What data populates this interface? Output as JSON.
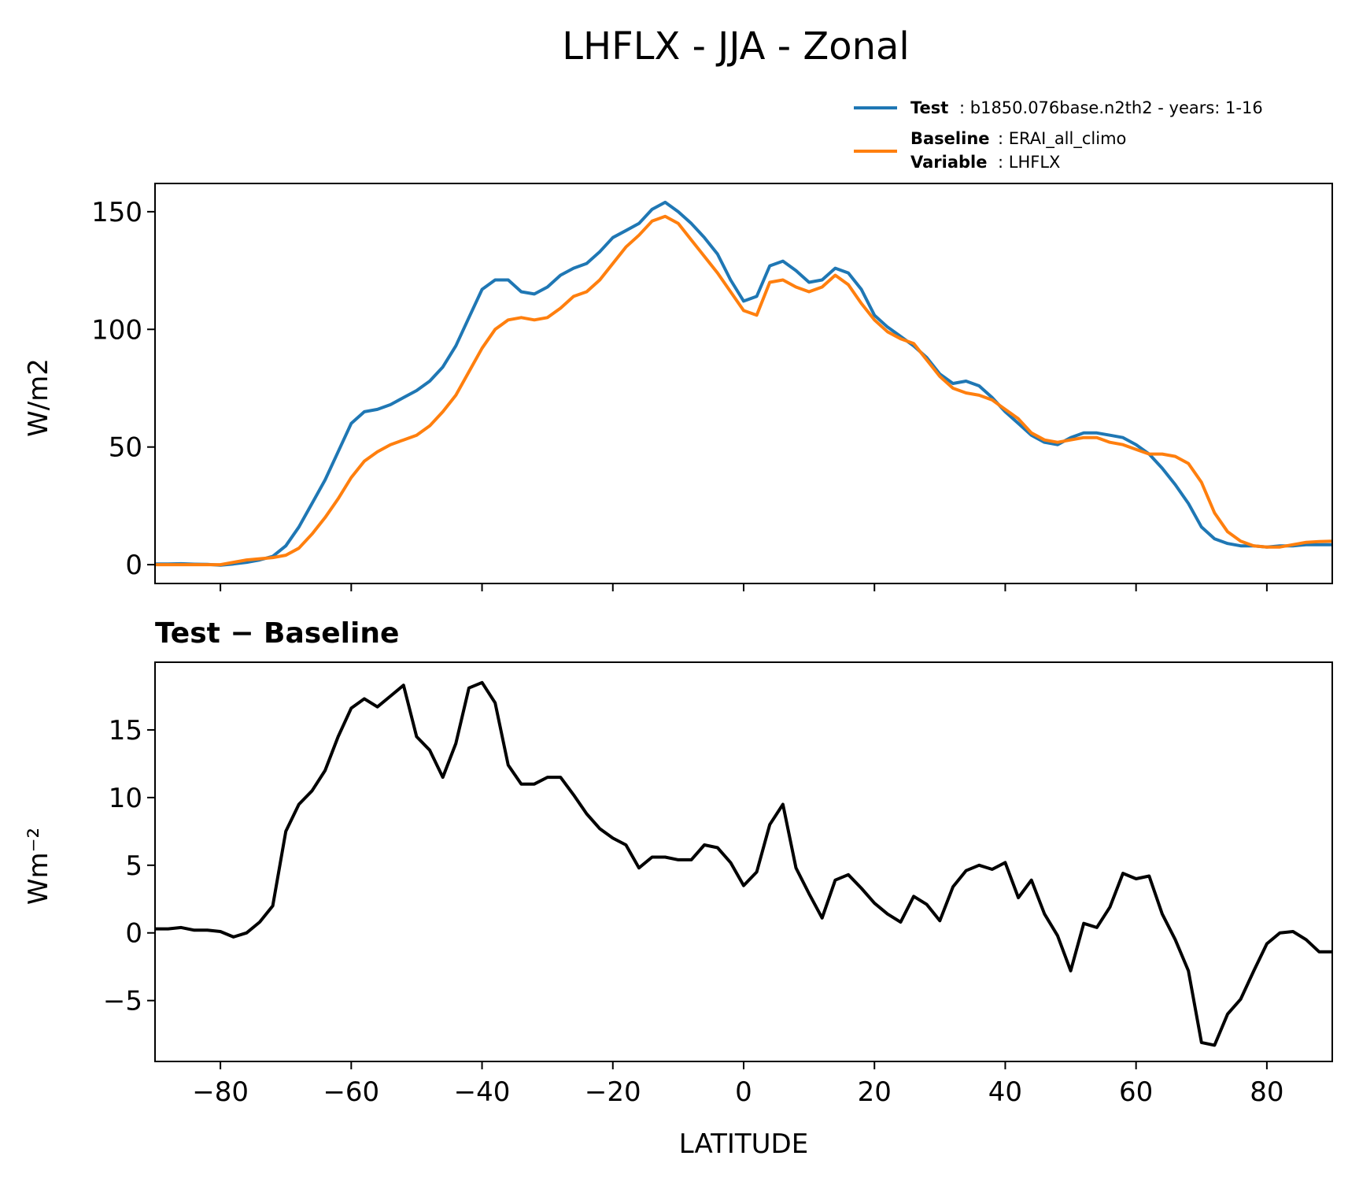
{
  "figure": {
    "title": "LHFLX - JJA - Zonal"
  },
  "legend": {
    "entries": [
      {
        "bold": "Test",
        "text": ": b1850.076base.n2th2 - years: 1-16",
        "color": "#1f77b4"
      },
      {
        "bold": "Baseline",
        "text": ": ERAI_all_climo",
        "color": "#ff7f0e"
      },
      {
        "bold": "Variable",
        "text": ": LHFLX",
        "color": "#ff7f0e"
      }
    ],
    "placement": "above top-right"
  },
  "chart_data": [
    {
      "type": "line",
      "ylabel": "W/m2",
      "xlabel": "",
      "xlim": [
        -90,
        90
      ],
      "ylim": [
        -8,
        162
      ],
      "yticks": [
        0,
        50,
        100,
        150
      ],
      "ytick_labels": [
        "0",
        "50",
        "100",
        "150"
      ],
      "xticks": [
        -80,
        -60,
        -40,
        -20,
        0,
        20,
        40,
        60,
        80
      ],
      "grid": false,
      "x": [
        -90,
        -88,
        -86,
        -84,
        -82,
        -80,
        -78,
        -76,
        -74,
        -72,
        -70,
        -68,
        -66,
        -64,
        -62,
        -60,
        -58,
        -56,
        -54,
        -52,
        -50,
        -48,
        -46,
        -44,
        -42,
        -40,
        -38,
        -36,
        -34,
        -32,
        -30,
        -28,
        -26,
        -24,
        -22,
        -20,
        -18,
        -16,
        -14,
        -12,
        -10,
        -8,
        -6,
        -4,
        -2,
        0,
        2,
        4,
        6,
        8,
        10,
        12,
        14,
        16,
        18,
        20,
        22,
        24,
        26,
        28,
        30,
        32,
        34,
        36,
        38,
        40,
        42,
        44,
        46,
        48,
        50,
        52,
        54,
        56,
        58,
        60,
        62,
        64,
        66,
        68,
        70,
        72,
        74,
        76,
        78,
        80,
        82,
        84,
        86,
        88,
        90
      ],
      "series": [
        {
          "name": "Test",
          "color": "#1f77b4",
          "values": [
            0.3,
            0.3,
            0.4,
            0.2,
            0.1,
            -0.2,
            0.3,
            1,
            2,
            3.5,
            8,
            16,
            26,
            36,
            48,
            60,
            65,
            66,
            68,
            71,
            74,
            78,
            84,
            93,
            105,
            117,
            121,
            121,
            116,
            115,
            118,
            123,
            126,
            128,
            133,
            139,
            142,
            145,
            151,
            154,
            150,
            145,
            139,
            132,
            121,
            112,
            114,
            127,
            129,
            125,
            120,
            121,
            126,
            124,
            117,
            106,
            101,
            97,
            93,
            88,
            81,
            77,
            78,
            76,
            71,
            65,
            60,
            55,
            52,
            51,
            54,
            56,
            56,
            55,
            54,
            51,
            47,
            41,
            34,
            26,
            16,
            11,
            9,
            8,
            8,
            7.5,
            8,
            8,
            8.5,
            8.5,
            8.5
          ]
        },
        {
          "name": "Baseline",
          "color": "#ff7f0e",
          "values": [
            0,
            0,
            0,
            0,
            0,
            0,
            1,
            2,
            2.5,
            3,
            4,
            7,
            13,
            20,
            28,
            37,
            44,
            48,
            51,
            53,
            55,
            59,
            65,
            72,
            82,
            92,
            100,
            104,
            105,
            104,
            105,
            109,
            114,
            116,
            121,
            128,
            135,
            140,
            146,
            148,
            145,
            138,
            131,
            124,
            116,
            108,
            106,
            120,
            121,
            118,
            116,
            118,
            123,
            119,
            111,
            104,
            99,
            96,
            94,
            87,
            80,
            75,
            73,
            72,
            70,
            66,
            62,
            56,
            53,
            52,
            53,
            54,
            54,
            52,
            51,
            49,
            47,
            47,
            46,
            43,
            35,
            22,
            14,
            10,
            8,
            7.5,
            7.5,
            8.5,
            9.5,
            9.8,
            10
          ]
        }
      ]
    },
    {
      "type": "line",
      "title": "Test − Baseline",
      "ylabel": "Wm⁻²",
      "xlabel": "LATITUDE",
      "xlim": [
        -90,
        90
      ],
      "ylim": [
        -9.5,
        20
      ],
      "yticks": [
        -5,
        0,
        5,
        10,
        15
      ],
      "ytick_labels": [
        "−5",
        "0",
        "5",
        "10",
        "15"
      ],
      "xticks": [
        -80,
        -60,
        -40,
        -20,
        0,
        20,
        40,
        60,
        80
      ],
      "xtick_labels": [
        "−80",
        "−60",
        "−40",
        "−20",
        "0",
        "20",
        "40",
        "60",
        "80"
      ],
      "grid": false,
      "x": [
        -90,
        -88,
        -86,
        -84,
        -82,
        -80,
        -78,
        -76,
        -74,
        -72,
        -70,
        -68,
        -66,
        -64,
        -62,
        -60,
        -58,
        -56,
        -54,
        -52,
        -50,
        -48,
        -46,
        -44,
        -42,
        -40,
        -38,
        -36,
        -34,
        -32,
        -30,
        -28,
        -26,
        -24,
        -22,
        -20,
        -18,
        -16,
        -14,
        -12,
        -10,
        -8,
        -6,
        -4,
        -2,
        0,
        2,
        4,
        6,
        8,
        10,
        12,
        14,
        16,
        18,
        20,
        22,
        24,
        26,
        28,
        30,
        32,
        34,
        36,
        38,
        40,
        42,
        44,
        46,
        48,
        50,
        52,
        54,
        56,
        58,
        60,
        62,
        64,
        66,
        68,
        70,
        72,
        74,
        76,
        78,
        80,
        82,
        84,
        86,
        88,
        90
      ],
      "series": [
        {
          "name": "Test − Baseline",
          "color": "#000000",
          "values": [
            0.3,
            0.3,
            0.4,
            0.2,
            0.2,
            0.1,
            -0.3,
            0,
            0.8,
            2,
            7.5,
            9.5,
            10.5,
            12,
            14.5,
            16.6,
            17.3,
            16.7,
            17.5,
            18.3,
            14.5,
            13.5,
            11.5,
            14,
            18.1,
            18.5,
            17,
            12.4,
            11,
            11,
            11.5,
            11.5,
            10.2,
            8.8,
            7.7,
            7,
            6.5,
            4.8,
            5.6,
            5.6,
            5.4,
            5.4,
            6.5,
            6.3,
            5.2,
            3.5,
            4.5,
            8,
            9.5,
            4.8,
            2.9,
            1.1,
            3.9,
            4.3,
            3.3,
            2.2,
            1.4,
            0.8,
            2.7,
            2.1,
            0.9,
            3.4,
            4.6,
            5,
            4.7,
            5.2,
            2.6,
            3.9,
            1.4,
            -0.2,
            -2.8,
            0.7,
            0.4,
            1.9,
            4.4,
            4,
            4.2,
            1.4,
            -0.5,
            -2.8,
            -8.1,
            -8.3,
            -6,
            -4.9,
            -2.8,
            -0.8,
            0,
            0.1,
            -0.5,
            -1.4,
            -1.4
          ]
        }
      ]
    }
  ]
}
